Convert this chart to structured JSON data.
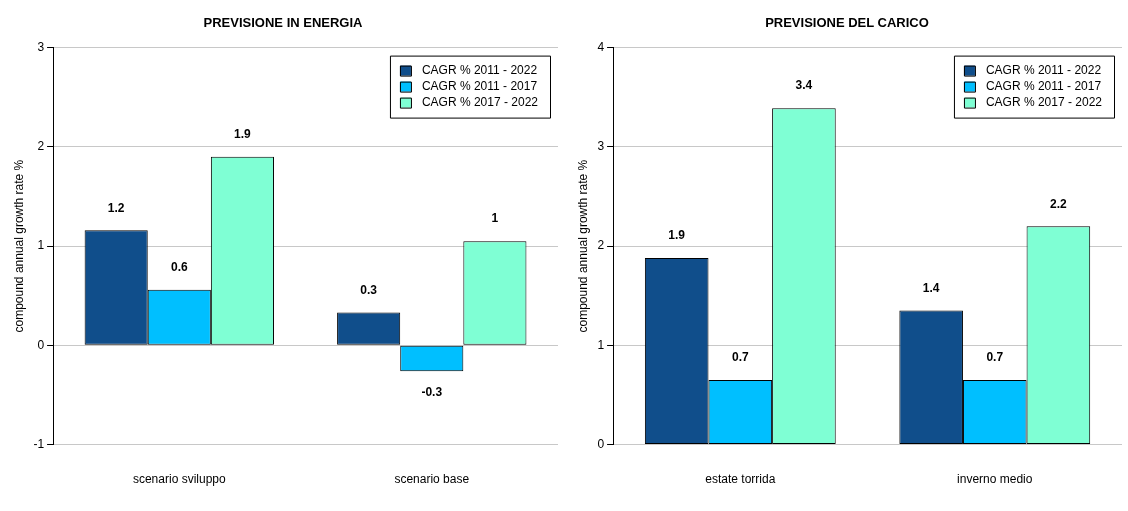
{
  "chart_data": [
    {
      "type": "bar",
      "title": "PREVISIONE IN ENERGIA",
      "ylabel": "compound annual growth rate %",
      "categories": [
        "scenario sviluppo",
        "scenario base"
      ],
      "series": [
        {
          "name": "CAGR % 2011 - 2022",
          "color": "#104e8b",
          "values": [
            1.16,
            0.33
          ],
          "value_labels": [
            "1.2",
            "0.3"
          ]
        },
        {
          "name": "CAGR % 2011 - 2017",
          "color": "#00bfff",
          "values": [
            0.56,
            -0.26
          ],
          "value_labels": [
            "0.6",
            "-0.3"
          ]
        },
        {
          "name": "CAGR % 2017 - 2022",
          "color": "#7fffd4",
          "values": [
            1.9,
            1.05
          ],
          "value_labels": [
            "1.9",
            "1"
          ]
        }
      ],
      "ylim": [
        -1,
        3
      ],
      "yticks": [
        -1,
        0,
        1,
        2,
        3
      ],
      "grid": "y",
      "legend": "top right"
    },
    {
      "type": "bar",
      "title": "PREVISIONE DEL CARICO",
      "ylabel": "compound annual growth rate %",
      "categories": [
        "estate torrida",
        "inverno medio"
      ],
      "series": [
        {
          "name": "CAGR % 2011 - 2022",
          "color": "#104e8b",
          "values": [
            1.88,
            1.35
          ],
          "value_labels": [
            "1.9",
            "1.4"
          ]
        },
        {
          "name": "CAGR % 2011 - 2017",
          "color": "#00bfff",
          "values": [
            0.65,
            0.65
          ],
          "value_labels": [
            "0.7",
            "0.7"
          ]
        },
        {
          "name": "CAGR % 2017 - 2022",
          "color": "#7fffd4",
          "values": [
            3.39,
            2.2
          ],
          "value_labels": [
            "3.4",
            "2.2"
          ]
        }
      ],
      "ylim": [
        0,
        4
      ],
      "yticks": [
        0,
        1,
        2,
        3,
        4
      ],
      "grid": "y",
      "legend": "top right"
    }
  ]
}
